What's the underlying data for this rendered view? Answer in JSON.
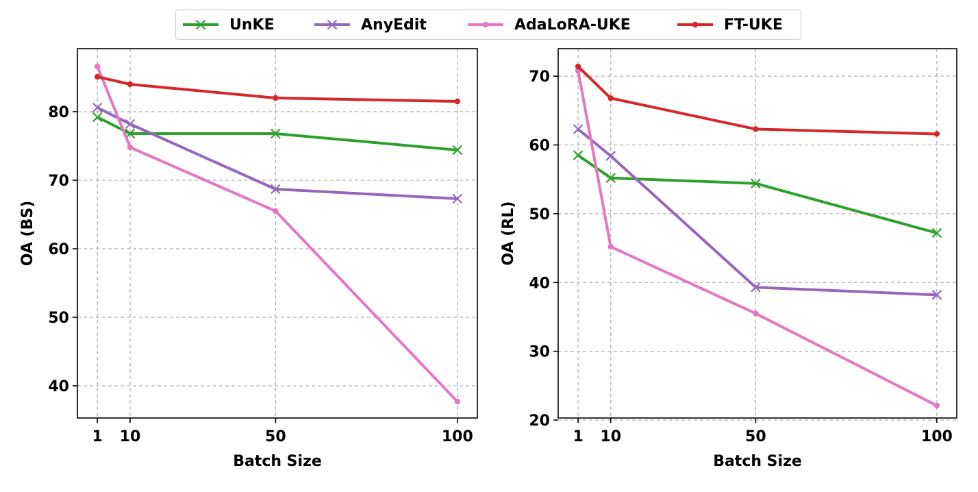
{
  "chart_data": [
    {
      "type": "line",
      "title": "",
      "xlabel": "Batch Size",
      "ylabel": "OA (BS)",
      "x": [
        1,
        10,
        50,
        100
      ],
      "xlim": [
        -4.5,
        105.5
      ],
      "ylim": [
        35.3,
        89.2
      ],
      "xticks": [
        1,
        10,
        50,
        100
      ],
      "yticks": [
        40,
        50,
        60,
        70,
        80
      ],
      "grid": true,
      "series": [
        {
          "name": "UnKE",
          "values": [
            79.2,
            76.8,
            76.8,
            74.4
          ]
        },
        {
          "name": "AnyEdit",
          "values": [
            80.6,
            78.2,
            68.7,
            67.3
          ]
        },
        {
          "name": "AdaLoRA-UKE",
          "values": [
            86.6,
            74.8,
            65.5,
            37.7
          ]
        },
        {
          "name": "FT-UKE",
          "values": [
            85.1,
            84.0,
            82.0,
            81.5
          ]
        }
      ]
    },
    {
      "type": "line",
      "title": "",
      "xlabel": "Batch Size",
      "ylabel": "OA (RL)",
      "x": [
        1,
        10,
        50,
        100
      ],
      "xlim": [
        -4.5,
        105.5
      ],
      "ylim": [
        20.3,
        74.0
      ],
      "xticks": [
        1,
        10,
        50,
        100
      ],
      "yticks": [
        20,
        30,
        40,
        50,
        60,
        70
      ],
      "grid": true,
      "series": [
        {
          "name": "UnKE",
          "values": [
            58.5,
            55.2,
            54.4,
            47.2
          ]
        },
        {
          "name": "AnyEdit",
          "values": [
            62.3,
            58.4,
            39.3,
            38.2
          ]
        },
        {
          "name": "AdaLoRA-UKE",
          "values": [
            70.8,
            45.2,
            35.5,
            22.1
          ]
        },
        {
          "name": "FT-UKE",
          "values": [
            71.4,
            66.8,
            62.3,
            61.6
          ]
        }
      ]
    }
  ],
  "legend": {
    "placement": "top-center",
    "items": [
      {
        "name": "UnKE",
        "color": "#2ca02c",
        "marker": "x"
      },
      {
        "name": "AnyEdit",
        "color": "#9467bd",
        "marker": "x"
      },
      {
        "name": "AdaLoRA-UKE",
        "color": "#e377c2",
        "marker": "dot"
      },
      {
        "name": "FT-UKE",
        "color": "#d62728",
        "marker": "dot"
      }
    ]
  }
}
